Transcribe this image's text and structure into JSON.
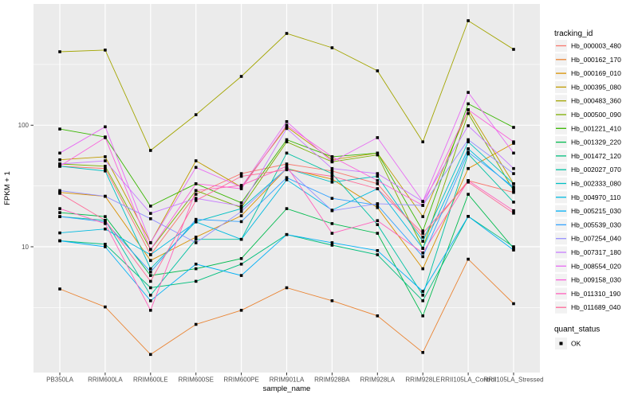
{
  "figure": {
    "background": "#FFFFFF",
    "panel_background": "#EBEBEB",
    "grid_color": "#FFFFFF",
    "tick_color": "#333333",
    "tick_label_color": "#4D4D4D",
    "point_color": "#000000",
    "legend_key_background": "#F2F2F2"
  },
  "legend": {
    "tracking_title": "tracking_id",
    "quant_title": "quant_status",
    "quant_items": [
      {
        "label": "OK"
      }
    ]
  },
  "chart_data": {
    "type": "line",
    "title": "",
    "xlabel": "sample_name",
    "ylabel": "FPKM + 1",
    "y_scale": "log10",
    "ylim": [
      1,
      1000
    ],
    "y_major_ticks": [
      100,
      10
    ],
    "y_major_tick_labels": [
      "100",
      "10"
    ],
    "y_minor_ticks": [
      316.23,
      31.62,
      3.162
    ],
    "grid": true,
    "legend_position": "right",
    "point_shape": "filled-square",
    "point_color": "#000000",
    "x_categories": [
      "PB350LA",
      "RRIM600LA",
      "RRIM600LE",
      "RRIM600SE",
      "RRIM600PE",
      "RRIM901LA",
      "RRIM928BA",
      "RRIM928LA",
      "RRIM928LE",
      "RRII105LA_Control",
      "RRII105LA_Stressed"
    ],
    "series": [
      {
        "name": "Hb_000003_480",
        "color": "#F8766D",
        "quant_status": "OK",
        "values": [
          46,
          44,
          8.6,
          27,
          40,
          48,
          42,
          33,
          12,
          35,
          28
        ]
      },
      {
        "name": "Hb_000162_170",
        "color": "#EA8331",
        "quant_status": "OK",
        "values": [
          4.5,
          3.2,
          1.3,
          2.3,
          3.0,
          4.6,
          3.6,
          2.7,
          1.35,
          7.9,
          3.4
        ]
      },
      {
        "name": "Hb_000169_010",
        "color": "#D89000",
        "quant_status": "OK",
        "values": [
          28,
          26,
          7.7,
          12,
          18,
          44,
          36,
          21,
          6.6,
          44,
          71
        ]
      },
      {
        "name": "Hb_000395_080",
        "color": "#C09B00",
        "quant_status": "OK",
        "values": [
          52,
          55,
          10.8,
          51,
          31,
          97,
          52,
          59,
          17.7,
          134,
          33
        ]
      },
      {
        "name": "Hb_000483_360",
        "color": "#A3A500",
        "quant_status": "OK",
        "values": [
          402,
          415,
          62,
          122,
          252,
          569,
          434,
          280,
          73,
          724,
          421
        ]
      },
      {
        "name": "Hb_000500_090",
        "color": "#7CAE00",
        "quant_status": "OK",
        "values": [
          48,
          46,
          9.5,
          29,
          21,
          73,
          50,
          57,
          9.7,
          125,
          29
        ]
      },
      {
        "name": "Hb_001221_410",
        "color": "#39B600",
        "quant_status": "OK",
        "values": [
          93,
          80,
          21.6,
          33,
          23,
          76,
          55,
          59,
          13.5,
          150,
          96
        ]
      },
      {
        "name": "Hb_001329_220",
        "color": "#00BB4E",
        "quant_status": "OK",
        "values": [
          19.1,
          17.7,
          5.8,
          6.6,
          8.0,
          20.6,
          15.5,
          12.9,
          2.7,
          27,
          9.7
        ]
      },
      {
        "name": "Hb_001472_120",
        "color": "#00BF7D",
        "quant_status": "OK",
        "values": [
          11.2,
          10.5,
          4.6,
          5.2,
          7.2,
          12.6,
          10.3,
          8.6,
          3.6,
          17.8,
          10
        ]
      },
      {
        "name": "Hb_002027_070",
        "color": "#00C1A3",
        "quant_status": "OK",
        "values": [
          17.7,
          16.5,
          4.0,
          11.5,
          11.5,
          59,
          40,
          15.2,
          4.0,
          58,
          23.3
        ]
      },
      {
        "name": "Hb_002333_080",
        "color": "#00BFC4",
        "quant_status": "OK",
        "values": [
          46,
          42,
          6.6,
          16.1,
          20.6,
          44,
          34,
          38,
          11.1,
          73,
          33
        ]
      },
      {
        "name": "Hb_004970_110",
        "color": "#00BAE0",
        "quant_status": "OK",
        "values": [
          13,
          14,
          8.6,
          16,
          11.5,
          35.6,
          20,
          30,
          9.7,
          64,
          30
        ]
      },
      {
        "name": "Hb_005215_030",
        "color": "#00B0F6",
        "quant_status": "OK",
        "values": [
          11.2,
          10,
          3.6,
          7.2,
          5.8,
          12.6,
          10.8,
          9.3,
          4.3,
          17.8,
          9.4
        ]
      },
      {
        "name": "Hb_005539_030",
        "color": "#35A2FF",
        "quant_status": "OK",
        "values": [
          17.7,
          16,
          6.2,
          16.8,
          16.1,
          37,
          25,
          22,
          8.3,
          60,
          31
        ]
      },
      {
        "name": "Hb_007254_040",
        "color": "#9590FF",
        "quant_status": "OK",
        "values": [
          29,
          26,
          17,
          10.8,
          19.5,
          44,
          19.8,
          22.6,
          21.9,
          76,
          40
        ]
      },
      {
        "name": "Hb_007317_180",
        "color": "#C77CFF",
        "quant_status": "OK",
        "values": [
          48,
          51,
          18.8,
          25,
          21.6,
          94,
          44,
          40,
          23.6,
          99,
          44
        ]
      },
      {
        "name": "Hb_008554_020",
        "color": "#E76BF3",
        "quant_status": "OK",
        "values": [
          59,
          97,
          10.8,
          45,
          31,
          107,
          50,
          79,
          23.6,
          186,
          59
        ]
      },
      {
        "name": "Hb_009158_030",
        "color": "#FA62DB",
        "quant_status": "OK",
        "values": [
          46,
          79,
          9.5,
          33,
          30,
          100,
          55,
          35,
          21.9,
          134,
          73
        ]
      },
      {
        "name": "Hb_011310_190",
        "color": "#FF62BC",
        "quant_status": "OK",
        "values": [
          20.6,
          15.5,
          3.0,
          29,
          32,
          46,
          12.9,
          16.4,
          8.9,
          35,
          19.8
        ]
      },
      {
        "name": "Hb_011689_040",
        "color": "#FF6A98",
        "quant_status": "OK",
        "values": [
          27.5,
          16.5,
          5.2,
          24,
          38,
          43,
          38,
          30,
          12.9,
          34,
          18.9
        ]
      }
    ]
  }
}
